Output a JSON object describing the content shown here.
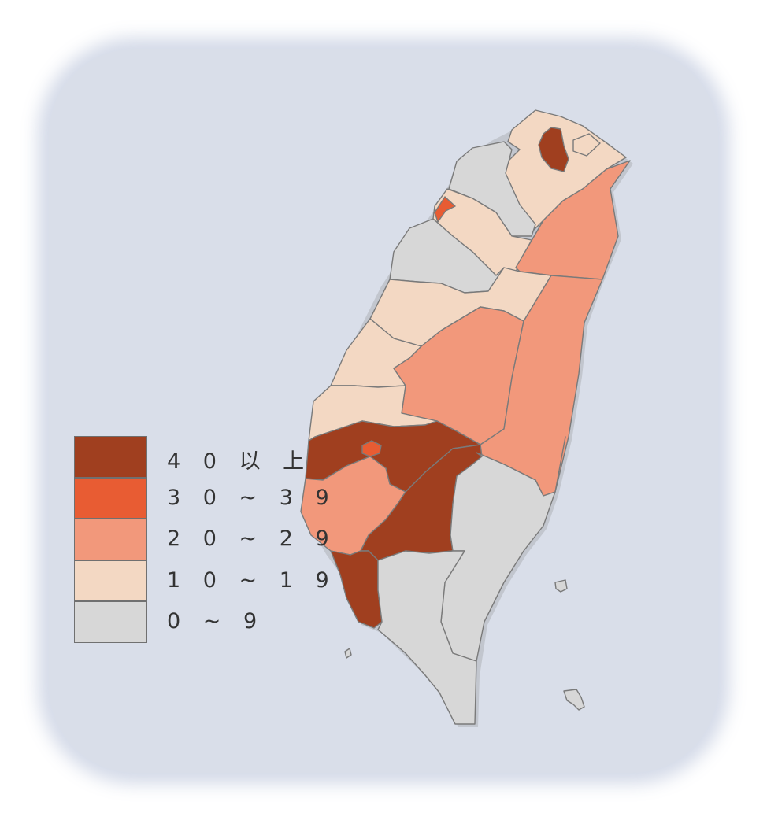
{
  "legend": {
    "items": [
      {
        "label": "4 0 以 上",
        "color": "#a03f1f"
      },
      {
        "label": "3 0 ~ 3 9",
        "color": "#e85c33"
      },
      {
        "label": "2 0 ~ 2 9",
        "color": "#f2987b"
      },
      {
        "label": "1 0 ~ 1 9",
        "color": "#f3d8c3"
      },
      {
        "label": "0 ~ 9",
        "color": "#d7d7d7"
      }
    ]
  },
  "regions": [
    {
      "name": "taipei-city",
      "class": "4 0 以 上"
    },
    {
      "name": "hsinchu-city",
      "class": "3 0 ~ 3 9"
    },
    {
      "name": "chiayi-city",
      "class": "3 0 ~ 3 9"
    },
    {
      "name": "yilan",
      "class": "2 0 ~ 2 9"
    },
    {
      "name": "hualien",
      "class": "2 0 ~ 2 9"
    },
    {
      "name": "nantou",
      "class": "2 0 ~ 2 9"
    },
    {
      "name": "tainan",
      "class": "2 0 ~ 2 9"
    },
    {
      "name": "chiayi-county",
      "class": "4 0 以 上"
    },
    {
      "name": "kaohsiung",
      "class": "4 0 以 上"
    },
    {
      "name": "pingtung-west",
      "class": "4 0 以 上"
    },
    {
      "name": "new-taipei",
      "class": "1 0 ~ 1 9"
    },
    {
      "name": "hsinchu-county",
      "class": "1 0 ~ 1 9"
    },
    {
      "name": "taichung",
      "class": "1 0 ~ 1 9"
    },
    {
      "name": "changhua",
      "class": "1 0 ~ 1 9"
    },
    {
      "name": "yunlin",
      "class": "1 0 ~ 1 9"
    },
    {
      "name": "keelung",
      "class": "1 0 ~ 1 9"
    },
    {
      "name": "taoyuan",
      "class": "0 ~ 9"
    },
    {
      "name": "miaoli",
      "class": "0 ~ 9"
    },
    {
      "name": "taitung",
      "class": "0 ~ 9"
    },
    {
      "name": "pingtung-east",
      "class": "0 ~ 9"
    },
    {
      "name": "green-island",
      "class": "0 ~ 9"
    },
    {
      "name": "orchid-island",
      "class": "0 ~ 9"
    },
    {
      "name": "xiaoliuqiu",
      "class": "0 ~ 9"
    }
  ]
}
